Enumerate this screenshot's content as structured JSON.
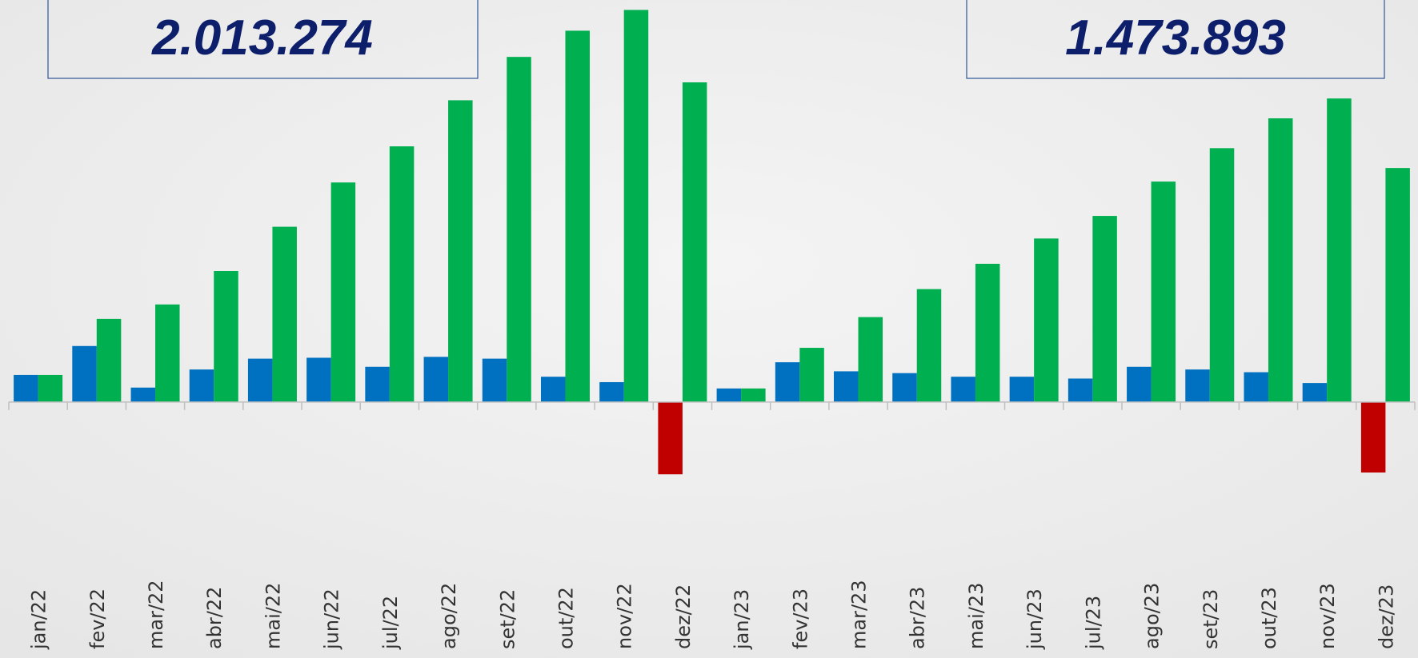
{
  "chart_data": {
    "type": "bar",
    "annotations": [
      "2.013.274",
      "1.473.893"
    ],
    "categories": [
      "jan/22",
      "fev/22",
      "mar/22",
      "abr/22",
      "mai/22",
      "jun/22",
      "jul/22",
      "ago/22",
      "set/22",
      "out/22",
      "nov/22",
      "dez/22",
      "jan/23",
      "fev/23",
      "mar/23",
      "abr/23",
      "mai/23",
      "jun/23",
      "jul/23",
      "ago/23",
      "set/23",
      "out/23",
      "nov/23",
      "dez/23"
    ],
    "series": [
      {
        "color": "#0070c0",
        "negative_color": "#c00000",
        "values": [
          170700,
          352800,
          91000,
          204800,
          273100,
          278800,
          221900,
          284500,
          273100,
          159300,
          125200,
          -455200,
          85400,
          250400,
          193500,
          182100,
          159300,
          159300,
          147900,
          221900,
          204800,
          187800,
          119500,
          -443800
        ]
      },
      {
        "color": "#00b050",
        "values": [
          170700,
          523500,
          614500,
          825000,
          1103900,
          1382700,
          1610300,
          1900500,
          2173600,
          2338600,
          2469500,
          2013274,
          85400,
          341400,
          534900,
          711300,
          870600,
          1029900,
          1172100,
          1388400,
          1598900,
          1786700,
          1911800,
          1473893
        ]
      }
    ],
    "ylim": [
      -882000,
      2532000
    ]
  }
}
